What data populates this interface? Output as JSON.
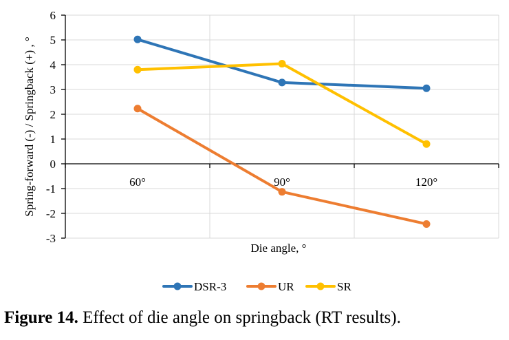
{
  "caption": {
    "label": "Figure 14.",
    "text": " Effect of die angle on springback (RT results)."
  },
  "chart_data": {
    "type": "line",
    "categories": [
      "60°",
      "90°",
      "120°"
    ],
    "series": [
      {
        "name": "DSR-3",
        "values": [
          5.02,
          3.28,
          3.05
        ],
        "color": "#2E75B6"
      },
      {
        "name": "UR",
        "values": [
          2.23,
          -1.13,
          -2.43
        ],
        "color": "#ED7D31"
      },
      {
        "name": "SR",
        "values": [
          3.8,
          4.04,
          0.8
        ],
        "color": "#FFC000"
      }
    ],
    "title": "",
    "xlabel": "Die angle, °",
    "ylabel": "Spring-forward (-) / Springback (+) , °",
    "ylim": [
      -3,
      6
    ],
    "yticks": [
      "6",
      "5",
      "4",
      "3",
      "2",
      "1",
      "0",
      "-1",
      "-2",
      "-3"
    ],
    "grid": true,
    "legend_position": "bottom"
  }
}
